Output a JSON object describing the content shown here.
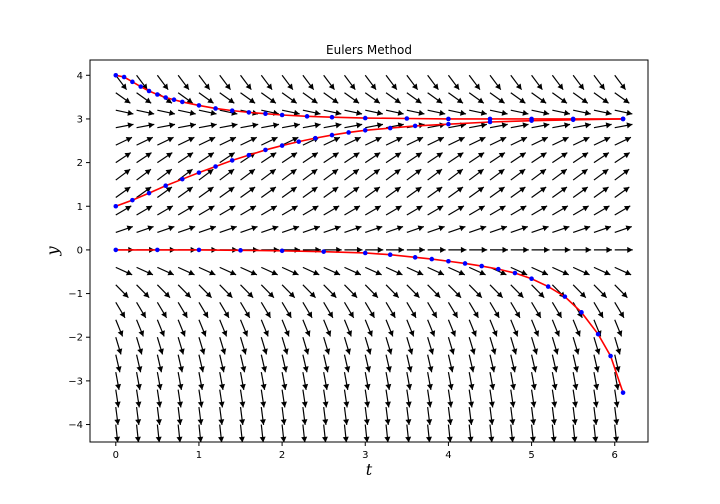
{
  "chart_data": {
    "type": "line",
    "title": "Eulers Method",
    "xlabel": "t",
    "ylabel": "y",
    "xlim": [
      -0.31,
      6.4
    ],
    "ylim": [
      -4.4,
      4.35
    ],
    "xticks": [
      0,
      1,
      2,
      3,
      4,
      5,
      6
    ],
    "yticks": [
      -4,
      -3,
      -2,
      -1,
      0,
      1,
      2,
      3,
      4
    ],
    "grid": false,
    "legend": "none",
    "line_color": "#ff0000",
    "marker_color": "#0000ff",
    "arrow_color": "#000000",
    "direction_field": {
      "equation": "dy/dt = y(3 - y)/3",
      "t_min": 0,
      "t_max": 6,
      "t_count": 25,
      "y_min": -4,
      "y_max": 4,
      "y_count": 21
    },
    "series": [
      {
        "t": [
          0,
          0.1,
          0.2,
          0.3,
          0.4,
          0.5,
          0.6,
          0.7,
          0.8,
          1.0,
          1.2,
          1.4,
          1.6,
          1.8,
          2.0,
          2.3,
          2.6,
          3.0,
          3.5,
          4.0,
          4.5,
          5.0,
          5.5,
          6.1
        ],
        "y": [
          4.0,
          3.96,
          3.85,
          3.74,
          3.64,
          3.56,
          3.49,
          3.44,
          3.39,
          3.31,
          3.24,
          3.19,
          3.15,
          3.12,
          3.09,
          3.06,
          3.04,
          3.02,
          3.01,
          3.0,
          3.0,
          3.0,
          3.0,
          3.0
        ]
      },
      {
        "t": [
          0,
          0.2,
          0.4,
          0.6,
          0.8,
          1.0,
          1.2,
          1.4,
          1.6,
          1.8,
          2.0,
          2.2,
          2.4,
          2.6,
          2.8,
          3.0,
          3.3,
          3.6,
          4.0,
          4.5,
          5.0,
          5.5,
          6.1
        ],
        "y": [
          1.0,
          1.14,
          1.3,
          1.47,
          1.62,
          1.77,
          1.91,
          2.05,
          2.17,
          2.29,
          2.39,
          2.48,
          2.56,
          2.63,
          2.69,
          2.74,
          2.79,
          2.84,
          2.88,
          2.93,
          2.96,
          2.98,
          3.0
        ]
      },
      {
        "t": [
          0,
          0.5,
          1.0,
          1.5,
          2.0,
          2.5,
          3.0,
          3.3,
          3.6,
          3.8,
          4.0,
          4.2,
          4.4,
          4.6,
          4.8,
          5.0,
          5.2,
          5.4,
          5.6,
          5.8,
          5.95,
          6.1
        ],
        "y": [
          0,
          0,
          0,
          -0.01,
          -0.02,
          -0.04,
          -0.07,
          -0.11,
          -0.17,
          -0.21,
          -0.26,
          -0.31,
          -0.37,
          -0.44,
          -0.53,
          -0.66,
          -0.84,
          -1.07,
          -1.43,
          -1.93,
          -2.43,
          -3.27
        ]
      }
    ]
  }
}
